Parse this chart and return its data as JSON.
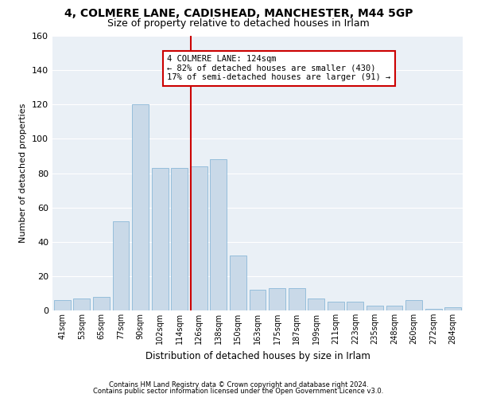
{
  "title1": "4, COLMERE LANE, CADISHEAD, MANCHESTER, M44 5GP",
  "title2": "Size of property relative to detached houses in Irlam",
  "xlabel": "Distribution of detached houses by size in Irlam",
  "ylabel": "Number of detached properties",
  "categories": [
    "41sqm",
    "53sqm",
    "65sqm",
    "77sqm",
    "90sqm",
    "102sqm",
    "114sqm",
    "126sqm",
    "138sqm",
    "150sqm",
    "163sqm",
    "175sqm",
    "187sqm",
    "199sqm",
    "211sqm",
    "223sqm",
    "235sqm",
    "248sqm",
    "260sqm",
    "272sqm",
    "284sqm"
  ],
  "values": [
    6,
    7,
    8,
    52,
    120,
    83,
    83,
    84,
    88,
    32,
    12,
    13,
    13,
    7,
    5,
    5,
    3,
    3,
    6,
    1,
    2
  ],
  "bar_color": "#c9d9e8",
  "bar_edge_color": "#7bafd4",
  "vline_x_idx": 7,
  "vline_color": "#cc0000",
  "annotation_text": "4 COLMERE LANE: 124sqm\n← 82% of detached houses are smaller (430)\n17% of semi-detached houses are larger (91) →",
  "annotation_box_color": "#ffffff",
  "annotation_box_edge": "#cc0000",
  "ylim": [
    0,
    160
  ],
  "yticks": [
    0,
    20,
    40,
    60,
    80,
    100,
    120,
    140,
    160
  ],
  "footer1": "Contains HM Land Registry data © Crown copyright and database right 2024.",
  "footer2": "Contains public sector information licensed under the Open Government Licence v3.0.",
  "bg_color": "#eaf0f6",
  "title1_fontsize": 10,
  "title2_fontsize": 9
}
